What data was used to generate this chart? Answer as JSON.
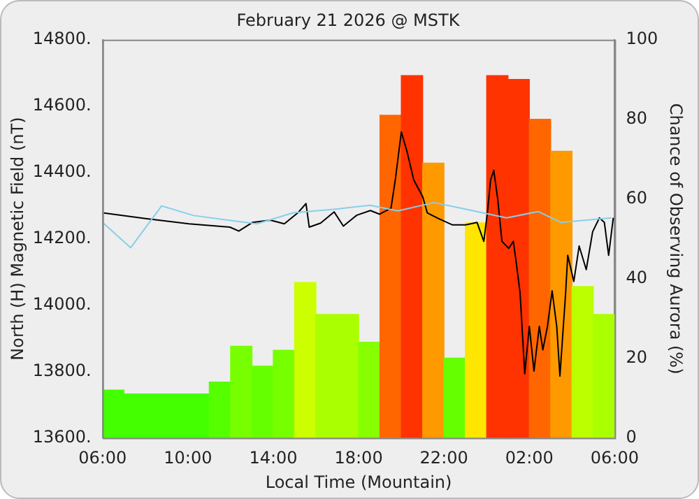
{
  "chart_data": {
    "type": "line",
    "title": "February 21 2026 @ MSTK",
    "xlabel": "Local Time (Mountain)",
    "ylabel": "North (H) Magnetic Field (nT)",
    "y2label": "Chance of Observing Aurora (%)",
    "xlim": [
      "2026-02-21T06:00",
      "2026-02-22T06:00"
    ],
    "xticks": [
      {
        "value": "2026-02-21T06:00",
        "label": "06:00"
      },
      {
        "value": "2026-02-21T10:00",
        "label": "10:00"
      },
      {
        "value": "2026-02-21T14:00",
        "label": "14:00"
      },
      {
        "value": "2026-02-21T18:00",
        "label": "18:00"
      },
      {
        "value": "2026-02-21T22:00",
        "label": "22:00"
      },
      {
        "value": "2026-02-22T02:00",
        "label": "02:00"
      },
      {
        "value": "2026-02-22T06:00",
        "label": "06:00"
      }
    ],
    "ylim": [
      13600,
      14800
    ],
    "yticks": [
      {
        "value": 13600,
        "label": "13600."
      },
      {
        "value": 13800,
        "label": "13800."
      },
      {
        "value": 14000,
        "label": "14000."
      },
      {
        "value": 14200,
        "label": "14200."
      },
      {
        "value": 14400,
        "label": "14400."
      },
      {
        "value": 14600,
        "label": "14600."
      },
      {
        "value": 14800,
        "label": "14800."
      }
    ],
    "y2lim": [
      0,
      100
    ],
    "y2ticks": [
      0,
      20,
      40,
      60,
      80,
      100
    ],
    "grid": false,
    "legend": false,
    "marker": "none",
    "line_style": "solid",
    "series": [
      {
        "type": "bar",
        "axis": "y2",
        "x": [
          "2026-02-21T06:30",
          "2026-02-21T07:30",
          "2026-02-21T08:30",
          "2026-02-21T09:30",
          "2026-02-21T10:30",
          "2026-02-21T11:30",
          "2026-02-21T12:30",
          "2026-02-21T13:30",
          "2026-02-21T14:30",
          "2026-02-21T15:30",
          "2026-02-21T16:30",
          "2026-02-21T17:30",
          "2026-02-21T18:30",
          "2026-02-21T19:30",
          "2026-02-21T20:30",
          "2026-02-21T21:30",
          "2026-02-21T22:30",
          "2026-02-21T23:30",
          "2026-02-22T00:30",
          "2026-02-22T01:30",
          "2026-02-22T02:30",
          "2026-02-22T03:30",
          "2026-02-22T04:30",
          "2026-02-22T05:30"
        ],
        "values": [
          12,
          11,
          11,
          11,
          11,
          14,
          23,
          18,
          22,
          39,
          31,
          31,
          24,
          81,
          91,
          69,
          20,
          54,
          91,
          90,
          80,
          72,
          38,
          31
        ],
        "colors": [
          "#44ff00",
          "#44ff00",
          "#44ff00",
          "#44ff00",
          "#44ff00",
          "#55ff00",
          "#77ff00",
          "#66ff00",
          "#77ff00",
          "#ccff00",
          "#aaff00",
          "#aaff00",
          "#88ff00",
          "#ff6600",
          "#ff3300",
          "#ff9900",
          "#66ff00",
          "#ffe600",
          "#ff3300",
          "#ff3300",
          "#ff6600",
          "#ff9900",
          "#bbff00",
          "#aaff00"
        ]
      },
      {
        "color": "#87ceeb",
        "x": [
          "2026-02-21T06:00",
          "2026-02-21T07:19",
          "2026-02-21T08:46",
          "2026-02-21T10:16",
          "2026-02-21T12:23",
          "2026-02-21T13:14",
          "2026-02-21T14:56",
          "2026-02-21T17:00",
          "2026-02-21T18:33",
          "2026-02-21T19:50",
          "2026-02-21T21:32",
          "2026-02-21T22:49",
          "2026-02-22T00:56",
          "2026-02-22T02:25",
          "2026-02-22T03:29",
          "2026-02-22T05:50"
        ],
        "values": [
          14249,
          14173,
          14299,
          14270,
          14252,
          14245,
          14278,
          14290,
          14301,
          14284,
          14309,
          14292,
          14263,
          14282,
          14249,
          14263
        ]
      },
      {
        "color": "#000000",
        "x": [
          "2026-02-21T06:00",
          "2026-02-21T08:01",
          "2026-02-21T10:03",
          "2026-02-21T11:58",
          "2026-02-21T12:23",
          "2026-02-21T13:01",
          "2026-02-21T13:52",
          "2026-02-21T14:31",
          "2026-02-21T15:09",
          "2026-02-21T15:32",
          "2026-02-21T15:41",
          "2026-02-21T16:13",
          "2026-02-21T16:51",
          "2026-02-21T17:17",
          "2026-02-21T17:55",
          "2026-02-21T18:33",
          "2026-02-21T18:59",
          "2026-02-21T19:31",
          "2026-02-21T19:43",
          "2026-02-21T20:00",
          "2026-02-21T20:16",
          "2026-02-21T20:35",
          "2026-02-21T21:00",
          "2026-02-21T21:13",
          "2026-02-21T21:44",
          "2026-02-21T22:23",
          "2026-02-21T23:01",
          "2026-02-21T23:33",
          "2026-02-21T23:52",
          "2026-02-22T00:02",
          "2026-02-22T00:11",
          "2026-02-22T00:20",
          "2026-02-22T00:31",
          "2026-02-22T00:43",
          "2026-02-22T01:02",
          "2026-02-22T01:15",
          "2026-02-22T01:24",
          "2026-02-22T01:34",
          "2026-02-22T01:47",
          "2026-02-22T02:00",
          "2026-02-22T02:13",
          "2026-02-22T02:28",
          "2026-02-22T02:38",
          "2026-02-22T02:51",
          "2026-02-22T03:04",
          "2026-02-22T03:17",
          "2026-02-22T03:26",
          "2026-02-22T03:42",
          "2026-02-22T03:48",
          "2026-02-22T04:05",
          "2026-02-22T04:20",
          "2026-02-22T04:40",
          "2026-02-22T04:58",
          "2026-02-22T05:17",
          "2026-02-22T05:31",
          "2026-02-22T05:43",
          "2026-02-22T05:56"
        ],
        "values": [
          14278,
          14261,
          14245,
          14235,
          14223,
          14249,
          14256,
          14245,
          14278,
          14306,
          14235,
          14247,
          14281,
          14238,
          14271,
          14285,
          14274,
          14292,
          14377,
          14522,
          14463,
          14377,
          14327,
          14278,
          14261,
          14242,
          14242,
          14249,
          14192,
          14278,
          14377,
          14406,
          14320,
          14192,
          14171,
          14192,
          14121,
          14036,
          13793,
          13936,
          13801,
          13936,
          13865,
          13936,
          14043,
          13936,
          13786,
          14036,
          14150,
          14071,
          14178,
          14107,
          14221,
          14263,
          14249,
          14150,
          14263
        ]
      }
    ]
  }
}
